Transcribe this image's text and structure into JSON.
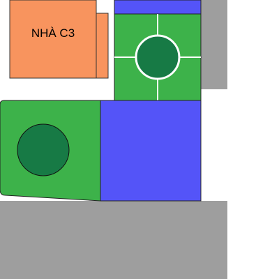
{
  "map": {
    "building": {
      "label": "NHÀ C3",
      "fill": "#f8945e"
    },
    "colors": {
      "road": "#9e9e9e",
      "lawn": "#3db24a",
      "pool": "#5454f8",
      "tree": "#177a45",
      "path": "#ffffff",
      "background": "#ffffff"
    }
  }
}
